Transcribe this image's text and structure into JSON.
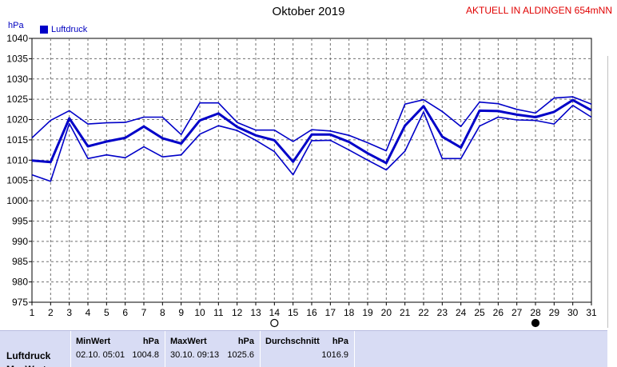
{
  "header": {
    "title": "Oktober 2019",
    "station": "AKTUELL IN ALDINGEN 654mNN",
    "unit": "hPa"
  },
  "legend": {
    "label": "Luftdruck",
    "color": "#0000c8"
  },
  "chart_data": {
    "type": "line",
    "title": "Oktober 2019",
    "ylabel": "hPa",
    "ylim": [
      975,
      1040
    ],
    "yticks": [
      975,
      980,
      985,
      990,
      995,
      1000,
      1005,
      1010,
      1015,
      1020,
      1025,
      1030,
      1035,
      1040
    ],
    "xlim": [
      1,
      31
    ],
    "x": [
      1,
      2,
      3,
      4,
      5,
      6,
      7,
      8,
      9,
      10,
      11,
      12,
      13,
      14,
      15,
      16,
      17,
      18,
      19,
      20,
      21,
      22,
      23,
      24,
      25,
      26,
      27,
      28,
      29,
      30,
      31
    ],
    "grid": true,
    "series": [
      {
        "role": "max",
        "values": [
          1015.5,
          1019.8,
          1022.2,
          1018.9,
          1019.2,
          1019.3,
          1020.6,
          1020.6,
          1016.3,
          1024.1,
          1024.1,
          1019.3,
          1017.4,
          1017.4,
          1014.6,
          1017.5,
          1017.2,
          1016.1,
          1014.3,
          1012.3,
          1023.8,
          1024.9,
          1022.0,
          1018.3,
          1024.3,
          1023.9,
          1022.5,
          1021.6,
          1025.3,
          1025.6,
          1023.8
        ]
      },
      {
        "role": "avg",
        "values": [
          1009.9,
          1009.5,
          1020.3,
          1013.4,
          1014.6,
          1015.5,
          1018.3,
          1015.4,
          1014.1,
          1019.8,
          1021.5,
          1018.2,
          1016.1,
          1014.9,
          1009.6,
          1016.3,
          1016.3,
          1014.5,
          1011.7,
          1009.3,
          1018.5,
          1023.3,
          1015.8,
          1013.1,
          1022.2,
          1022.1,
          1021.2,
          1020.6,
          1021.9,
          1024.8,
          1022.3
        ]
      },
      {
        "role": "min",
        "values": [
          1006.4,
          1004.8,
          1019.0,
          1010.4,
          1011.3,
          1010.6,
          1013.3,
          1010.8,
          1011.3,
          1016.4,
          1018.5,
          1017.3,
          1014.9,
          1012.1,
          1006.4,
          1014.8,
          1014.9,
          1012.5,
          1010.0,
          1007.6,
          1012.2,
          1021.9,
          1010.4,
          1010.4,
          1018.4,
          1020.6,
          1019.9,
          1019.8,
          1018.9,
          1023.5,
          1020.6
        ]
      }
    ],
    "moon_markers": [
      {
        "day": 14,
        "phase": "full-moon"
      },
      {
        "day": 28,
        "phase": "new-moon"
      }
    ]
  },
  "summary": {
    "row_label": "Luftdruck",
    "row_label2": "MaxWert",
    "min": {
      "header": "MinWert",
      "unit": "hPa",
      "date": "02.10.  05:01",
      "value": "1004.8"
    },
    "max": {
      "header": "MaxWert",
      "unit": "hPa",
      "date": "30.10.  09:13",
      "value": "1025.6"
    },
    "avg": {
      "header": "Durchschnitt",
      "unit": "hPa",
      "value": "1016.9"
    }
  }
}
